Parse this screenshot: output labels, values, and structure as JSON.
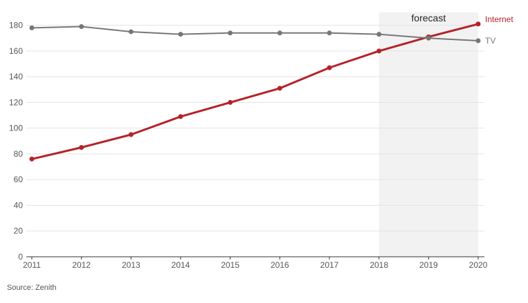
{
  "chart_data": {
    "type": "line",
    "x": [
      2011,
      2012,
      2013,
      2014,
      2015,
      2016,
      2017,
      2018,
      2019,
      2020
    ],
    "series": [
      {
        "name": "Internet",
        "color": "#b52228",
        "values": [
          76,
          85,
          95,
          109,
          120,
          131,
          147,
          160,
          171,
          181
        ]
      },
      {
        "name": "TV",
        "color": "#777777",
        "values": [
          178,
          179,
          175,
          173,
          174,
          174,
          174,
          173,
          170,
          168
        ]
      }
    ],
    "ylim": [
      0,
      190
    ],
    "yticks": [
      0,
      20,
      40,
      60,
      80,
      100,
      120,
      140,
      160,
      180
    ],
    "xticks": [
      "2011",
      "2012",
      "2013",
      "2014",
      "2015",
      "2016",
      "2017",
      "2018",
      "2019",
      "2020"
    ],
    "forecast_range": [
      2018,
      2020
    ],
    "annotations": {
      "forecast": "forecast"
    },
    "grid": true,
    "title": "",
    "xlabel": "",
    "ylabel": ""
  },
  "source": "Source: Zenith"
}
